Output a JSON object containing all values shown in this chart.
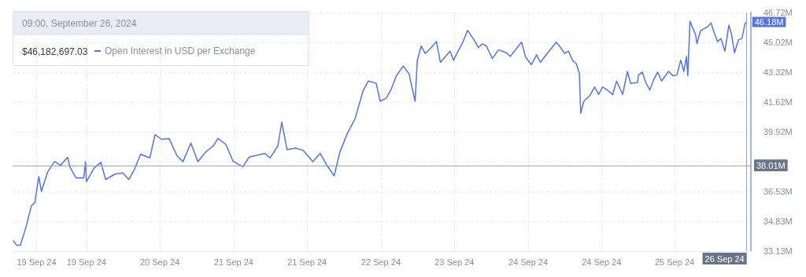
{
  "chart_data": {
    "type": "line",
    "x": [
      "2024-09-19T00:13",
      "2024-09-19T00:57",
      "2024-09-19T01:54",
      "2024-09-19T03:10",
      "2024-09-19T04:32",
      "2024-09-19T05:22",
      "2024-09-19T06:19",
      "2024-09-19T06:57",
      "2024-09-19T08:26",
      "2024-09-19T10:07",
      "2024-09-19T11:35",
      "2024-09-19T13:17",
      "2024-09-19T13:48",
      "2024-09-19T15:17",
      "2024-09-19T17:10",
      "2024-09-19T17:35",
      "2024-09-19T17:48",
      "2024-09-19T19:36",
      "2024-09-19T21:17",
      "2024-09-19T22:26",
      "2024-09-20T00:39",
      "2024-09-20T02:33",
      "2024-09-20T04:02",
      "2024-09-20T05:24",
      "2024-09-20T06:52",
      "2024-09-20T09:05",
      "2024-09-20T10:21",
      "2024-09-20T11:56",
      "2024-09-20T13:43",
      "2024-09-20T15:37",
      "2024-09-20T17:05",
      "2024-09-20T18:59",
      "2024-09-20T20:40",
      "2024-09-20T22:34",
      "2024-09-21T00:22",
      "2024-09-21T01:31",
      "2024-09-21T03:25",
      "2024-09-21T05:06",
      "2024-09-21T07:31",
      "2024-09-21T09:00",
      "2024-09-21T12:47",
      "2024-09-21T14:04",
      "2024-09-21T15:57",
      "2024-09-21T16:54",
      "2024-09-21T18:10",
      "2024-09-21T20:16",
      "2024-09-21T22:04",
      "2024-09-22T00:23",
      "2024-09-22T02:10",
      "2024-09-22T03:39",
      "2024-09-22T05:32",
      "2024-09-22T06:55",
      "2024-09-22T08:43",
      "2024-09-22T10:36",
      "2024-09-22T12:30",
      "2024-09-22T13:46",
      "2024-09-22T15:40",
      "2024-09-22T16:37",
      "2024-09-22T18:05",
      "2024-09-22T19:21",
      "2024-09-22T20:31",
      "2024-09-22T22:11",
      "2024-09-22T23:34",
      "2024-09-23T01:02",
      "2024-09-23T01:34",
      "2024-09-23T02:31",
      "2024-09-23T03:28",
      "2024-09-23T04:25",
      "2024-09-23T06:12",
      "2024-09-23T07:09",
      "2024-09-23T09:28",
      "2024-09-23T10:19",
      "2024-09-23T12:37",
      "2024-09-23T13:41",
      "2024-09-23T15:03",
      "2024-09-23T16:19",
      "2024-09-23T17:16",
      "2024-09-23T18:13",
      "2024-09-23T19:41",
      "2024-09-23T21:10",
      "2024-09-23T23:04",
      "2024-09-24T00:00",
      "2024-09-24T00:57",
      "2024-09-24T02:44",
      "2024-09-24T03:41",
      "2024-09-24T05:04",
      "2024-09-24T06:20",
      "2024-09-24T07:16",
      "2024-09-24T08:13",
      "2024-09-24T11:04",
      "2024-09-24T12:07",
      "2024-09-24T13:04",
      "2024-09-24T14:01",
      "2024-09-24T14:58",
      "2024-09-24T15:55",
      "2024-09-24T16:39",
      "2024-09-24T16:58",
      "2024-09-24T17:43",
      "2024-09-24T19:05",
      "2024-09-24T20:20",
      "2024-09-24T21:17",
      "2024-09-24T22:14",
      "2024-09-24T23:23",
      "2024-09-25T00:40",
      "2024-09-25T01:37",
      "2024-09-25T03:05",
      "2024-09-25T04:14",
      "2024-09-25T04:59",
      "2024-09-25T06:40",
      "2024-09-25T06:53",
      "2024-09-25T07:49",
      "2024-09-25T08:40",
      "2024-09-25T09:37",
      "2024-09-25T10:34",
      "2024-09-25T11:31",
      "2024-09-25T12:28",
      "2024-09-25T14:09",
      "2024-09-25T15:12",
      "2024-09-25T16:09",
      "2024-09-25T17:05",
      "2024-09-25T17:50",
      "2024-09-25T18:28",
      "2024-09-25T18:47",
      "2024-09-25T19:19",
      "2024-09-25T20:41",
      "2024-09-25T20:59",
      "2024-09-25T21:50",
      "2024-09-25T22:41",
      "2024-09-25T23:38",
      "2024-09-26T00:22",
      "2024-09-26T01:00",
      "2024-09-26T01:57",
      "2024-09-26T02:47",
      "2024-09-26T03:44",
      "2024-09-26T04:41",
      "2024-09-26T05:19",
      "2024-09-26T06:03",
      "2024-09-26T07:00",
      "2024-09-26T07:50",
      "2024-09-26T08:35",
      "2024-09-26T09:00"
    ],
    "series": [
      {
        "name": "Open Interest in USD per Exchange",
        "color": "#5475dc",
        "values": [
          33.72,
          33.47,
          33.47,
          34.45,
          35.72,
          35.89,
          37.38,
          36.53,
          37.63,
          38.23,
          38.02,
          38.48,
          37.93,
          37.3,
          37.3,
          38.23,
          37.08,
          37.85,
          38.19,
          37.21,
          37.51,
          37.59,
          37.21,
          37.8,
          38.65,
          38.44,
          39.76,
          39.5,
          39.55,
          38.57,
          38.23,
          39.29,
          38.23,
          38.78,
          39.12,
          39.55,
          39.21,
          38.27,
          37.93,
          38.48,
          38.7,
          38.44,
          39.12,
          40.48,
          38.91,
          39.0,
          38.87,
          38.23,
          38.7,
          38.06,
          37.42,
          38.78,
          39.84,
          40.69,
          42.27,
          42.82,
          42.69,
          41.67,
          41.84,
          42.39,
          43.12,
          43.67,
          43.24,
          41.67,
          43.97,
          44.82,
          44.39,
          44.6,
          45.07,
          43.88,
          44.52,
          44.01,
          45.07,
          45.71,
          45.24,
          44.73,
          44.94,
          44.82,
          44.1,
          44.6,
          44.43,
          44.22,
          44.52,
          45.03,
          44.18,
          43.75,
          44.31,
          43.88,
          44.18,
          45.03,
          44.73,
          44.39,
          44.52,
          44.01,
          43.8,
          43.24,
          40.99,
          41.67,
          41.97,
          42.48,
          42.05,
          42.48,
          42.31,
          42.05,
          42.82,
          42.05,
          43.37,
          42.69,
          42.73,
          43.16,
          43.33,
          42.73,
          42.31,
          42.9,
          43.33,
          42.82,
          43.37,
          43.12,
          43.16,
          44.01,
          43.37,
          44.22,
          43.12,
          46.22,
          45.45,
          44.94,
          45.67,
          45.8,
          45.92,
          46.13,
          45.67,
          45.07,
          45.24,
          44.52,
          46.0,
          45.5,
          44.43,
          45.16,
          45.24,
          46.09,
          46.18
        ]
      }
    ],
    "xlim": [
      "2024-09-19T00:00",
      "2024-09-26T10:00"
    ],
    "xticks": [
      {
        "value": "2024-09-19T05:47",
        "label": "19 Sep 24"
      },
      {
        "value": "2024-09-19T17:48",
        "label": "19 Sep 24"
      },
      {
        "value": "2024-09-20T11:30",
        "label": "20 Sep 24"
      },
      {
        "value": "2024-09-21T05:18",
        "label": "21 Sep 24"
      },
      {
        "value": "2024-09-21T23:00",
        "label": "21 Sep 24"
      },
      {
        "value": "2024-09-22T16:48",
        "label": "22 Sep 24"
      },
      {
        "value": "2024-09-23T10:30",
        "label": "23 Sep 24"
      },
      {
        "value": "2024-09-24T04:18",
        "label": "24 Sep 24"
      },
      {
        "value": "2024-09-24T22:00",
        "label": "24 Sep 24"
      },
      {
        "value": "2024-09-25T15:36",
        "label": "25 Sep 24"
      }
    ],
    "ylim": [
      33.13,
      46.72
    ],
    "yticks": [
      {
        "value": 33.13,
        "label": "33.13M"
      },
      {
        "value": 34.83,
        "label": "34.83M"
      },
      {
        "value": 36.53,
        "label": "36.53M"
      },
      {
        "value": 38.22,
        "label": null
      },
      {
        "value": 39.92,
        "label": "39.92M"
      },
      {
        "value": 41.62,
        "label": "41.62M"
      },
      {
        "value": 43.32,
        "label": "43.32M"
      },
      {
        "value": 45.02,
        "label": "45.02M"
      },
      {
        "value": 46.72,
        "label": "46.72M"
      }
    ],
    "grid": true,
    "legend": "top left",
    "marker": "none",
    "line_style": "solid",
    "ref_lines": [
      {
        "axis": "y",
        "value": 38.01,
        "label": "38.01M",
        "color": "#9aa3b5"
      },
      {
        "axis": "x",
        "value": "2024-09-26T09:00",
        "label": "26 Sep 24",
        "color": "#9aa3b5"
      }
    ],
    "annotations": [
      "09:00, September 26, 2024",
      "$46,182,697.03",
      {
        "text": "46.18M",
        "x": "2024-09-26T09:00",
        "y": 46.18
      }
    ]
  }
}
